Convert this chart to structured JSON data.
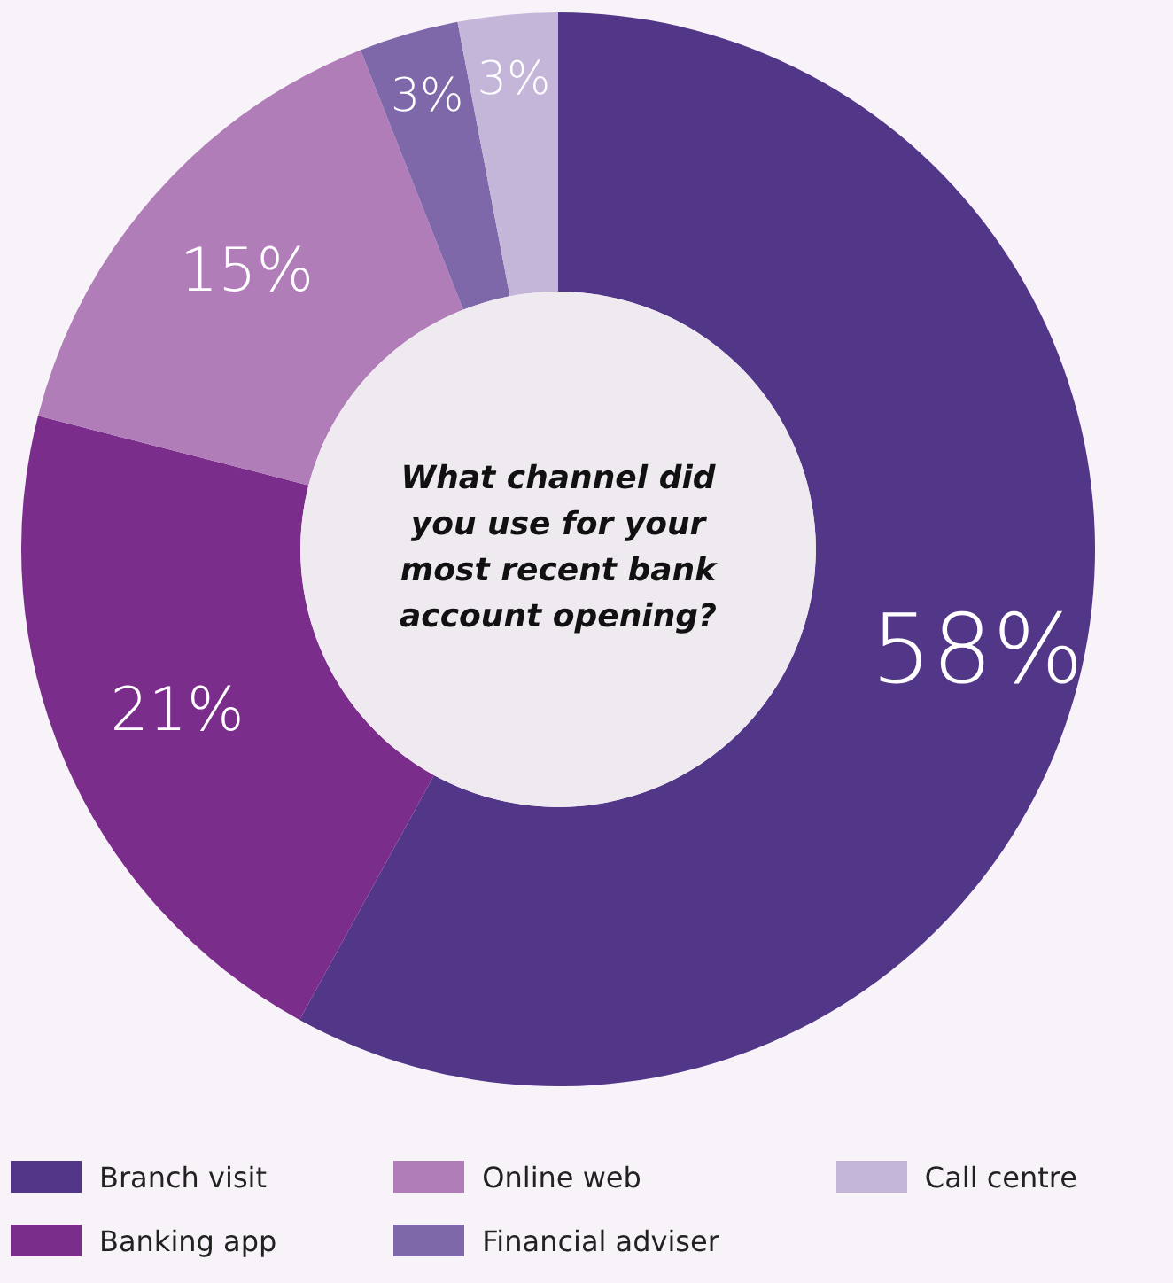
{
  "chart_data": {
    "type": "donut",
    "title": "What channel did you use for your most recent bank account opening?",
    "categories": [
      "Branch visit",
      "Banking app",
      "Online web",
      "Financial adviser",
      "Call centre"
    ],
    "values": [
      58,
      21,
      15,
      3,
      3
    ],
    "colors": [
      "#523688",
      "#7b2d8b",
      "#b07db8",
      "#7e68aa",
      "#c3b6d8"
    ],
    "value_labels": [
      "58%",
      "21%",
      "15%",
      "3%",
      "3%"
    ],
    "legend": "bottom"
  }
}
